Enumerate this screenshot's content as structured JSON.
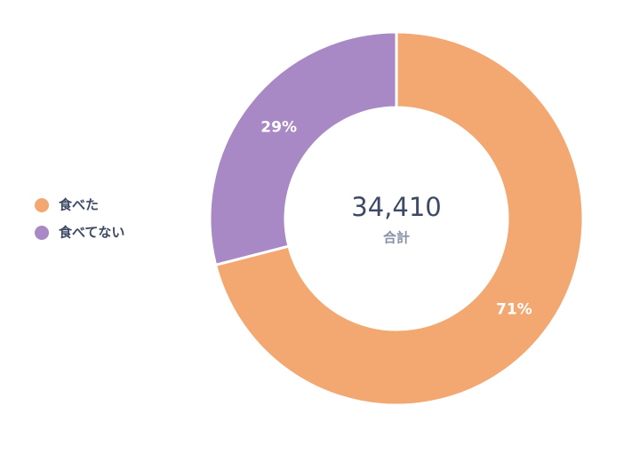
{
  "chart_data": {
    "type": "donut",
    "categories": [
      "食べた",
      "食べてない"
    ],
    "values": [
      71,
      29
    ],
    "value_labels": [
      "71%",
      "29%"
    ],
    "colors": [
      "#f2a870",
      "#a888c5"
    ],
    "total": {
      "value": 34410,
      "label": "34,410"
    },
    "total_label": "合計",
    "legend": "left"
  }
}
